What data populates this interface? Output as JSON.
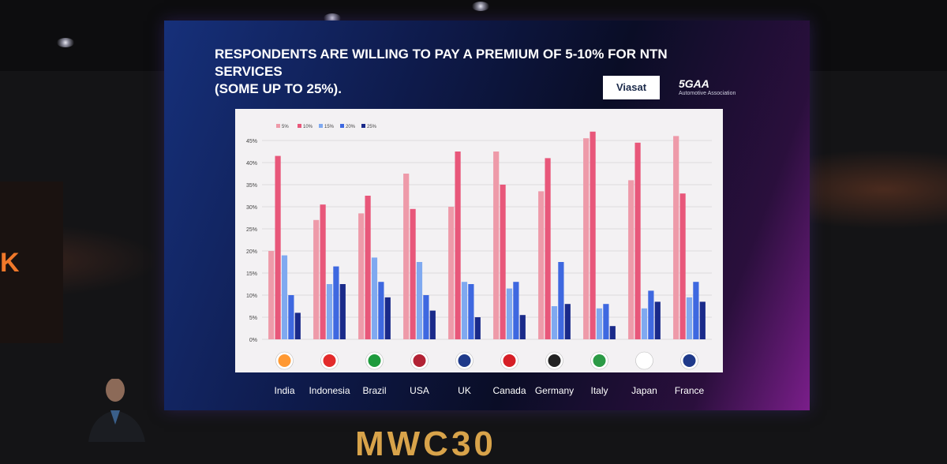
{
  "slide": {
    "title_line1": "RESPONDENTS ARE WILLING TO PAY A PREMIUM OF 5-10% FOR NTN SERVICES",
    "title_line2": "(SOME UP TO 25%).",
    "logos": {
      "viasat": "Viasat",
      "fivegaa": "5GAA",
      "fivegaa_sub": "Automotive Association"
    }
  },
  "venue": {
    "side_letter": "K",
    "bottom_sign": "MWC30"
  },
  "chart_data": {
    "type": "bar",
    "title": "",
    "xlabel": "",
    "ylabel": "",
    "ylim": [
      0,
      45
    ],
    "yticks": [
      "0%",
      "5%",
      "10%",
      "15%",
      "20%",
      "25%",
      "30%",
      "35%",
      "40%",
      "45%"
    ],
    "grid": true,
    "legend_position": "top-left",
    "categories": [
      "India",
      "Indonesia",
      "Brazil",
      "USA",
      "UK",
      "Canada",
      "Germany",
      "Italy",
      "Japan",
      "France"
    ],
    "series": [
      {
        "name": "5%",
        "color": "#ee9aa9",
        "values": [
          20,
          27,
          28.5,
          37.5,
          30,
          42.5,
          33.5,
          45.5,
          36,
          46
        ]
      },
      {
        "name": "10%",
        "color": "#e8577a",
        "values": [
          41.5,
          30.5,
          32.5,
          29.5,
          42.5,
          35,
          41,
          47,
          44.5,
          33
        ]
      },
      {
        "name": "15%",
        "color": "#7fa9f0",
        "values": [
          19,
          12.5,
          18.5,
          17.5,
          13,
          11.5,
          7.5,
          7,
          7,
          9.5
        ]
      },
      {
        "name": "20%",
        "color": "#3e68e0",
        "values": [
          10,
          16.5,
          13,
          10,
          12.5,
          13,
          17.5,
          8,
          11,
          13
        ]
      },
      {
        "name": "25%",
        "color": "#1a2a8a",
        "values": [
          6,
          12.5,
          9.5,
          6.5,
          5,
          5.5,
          8,
          3,
          8.5,
          8.5
        ]
      }
    ],
    "flag_icons": [
      "india-flag-icon",
      "indonesia-flag-icon",
      "brazil-flag-icon",
      "usa-flag-icon",
      "uk-flag-icon",
      "canada-flag-icon",
      "germany-flag-icon",
      "italy-flag-icon",
      "japan-flag-icon",
      "france-flag-icon"
    ]
  }
}
